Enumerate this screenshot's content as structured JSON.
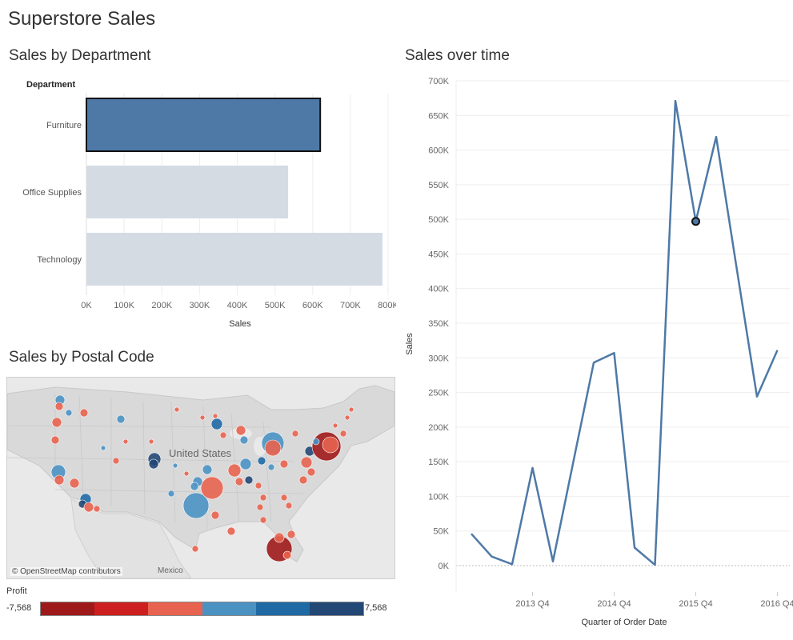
{
  "dashboard": {
    "title": "Superstore Sales"
  },
  "colors": {
    "selected": "#4e79a7",
    "muted": "#d4dbe3",
    "line": "#4e79a7",
    "marker_stroke": "#111111"
  },
  "chart_data": [
    {
      "type": "bar",
      "title": "Sales by Department",
      "header": "Department",
      "categories": [
        "Furniture",
        "Office Supplies",
        "Technology"
      ],
      "values": [
        620000,
        535000,
        785000
      ],
      "selected": "Furniture",
      "xlabel": "Sales",
      "xlim": [
        0,
        800000
      ],
      "ticks": [
        "0K",
        "100K",
        "200K",
        "300K",
        "400K",
        "500K",
        "600K",
        "700K",
        "800K"
      ]
    },
    {
      "type": "line",
      "title": "Sales over time",
      "xlabel": "Quarter of Order Date",
      "ylabel": "Sales",
      "ylim": [
        0,
        700000
      ],
      "y_ticks": [
        "0K",
        "50K",
        "100K",
        "150K",
        "200K",
        "250K",
        "300K",
        "350K",
        "400K",
        "450K",
        "500K",
        "550K",
        "600K",
        "650K",
        "700K"
      ],
      "x_ticks": [
        "2013 Q4",
        "2014 Q4",
        "2015 Q4",
        "2016 Q4"
      ],
      "x": [
        "2013 Q1",
        "2013 Q2",
        "2013 Q3",
        "2013 Q4",
        "2014 Q1",
        "2014 Q2",
        "2014 Q3",
        "2014 Q4",
        "2015 Q1",
        "2015 Q2",
        "2015 Q3",
        "2015 Q4",
        "2016 Q1",
        "2016 Q2",
        "2016 Q3",
        "2016 Q4"
      ],
      "values": [
        46000,
        13000,
        2000,
        141000,
        6000,
        150000,
        293000,
        307000,
        26000,
        1000,
        671000,
        497000,
        619000,
        430000,
        244000,
        311000
      ],
      "highlight": "2015 Q4",
      "grid": true
    }
  ],
  "map": {
    "title": "Sales by Postal Code",
    "credit": "© OpenStreetMap contributors",
    "country_label": "United States",
    "neighbor_label": "Mexico",
    "legend": {
      "title": "Profit",
      "min": "-7,568",
      "max": "7,568",
      "colors": [
        "#9e1a1a",
        "#cd1f1f",
        "#e8634f",
        "#4b92c3",
        "#1f6aa5",
        "#234876"
      ]
    }
  }
}
